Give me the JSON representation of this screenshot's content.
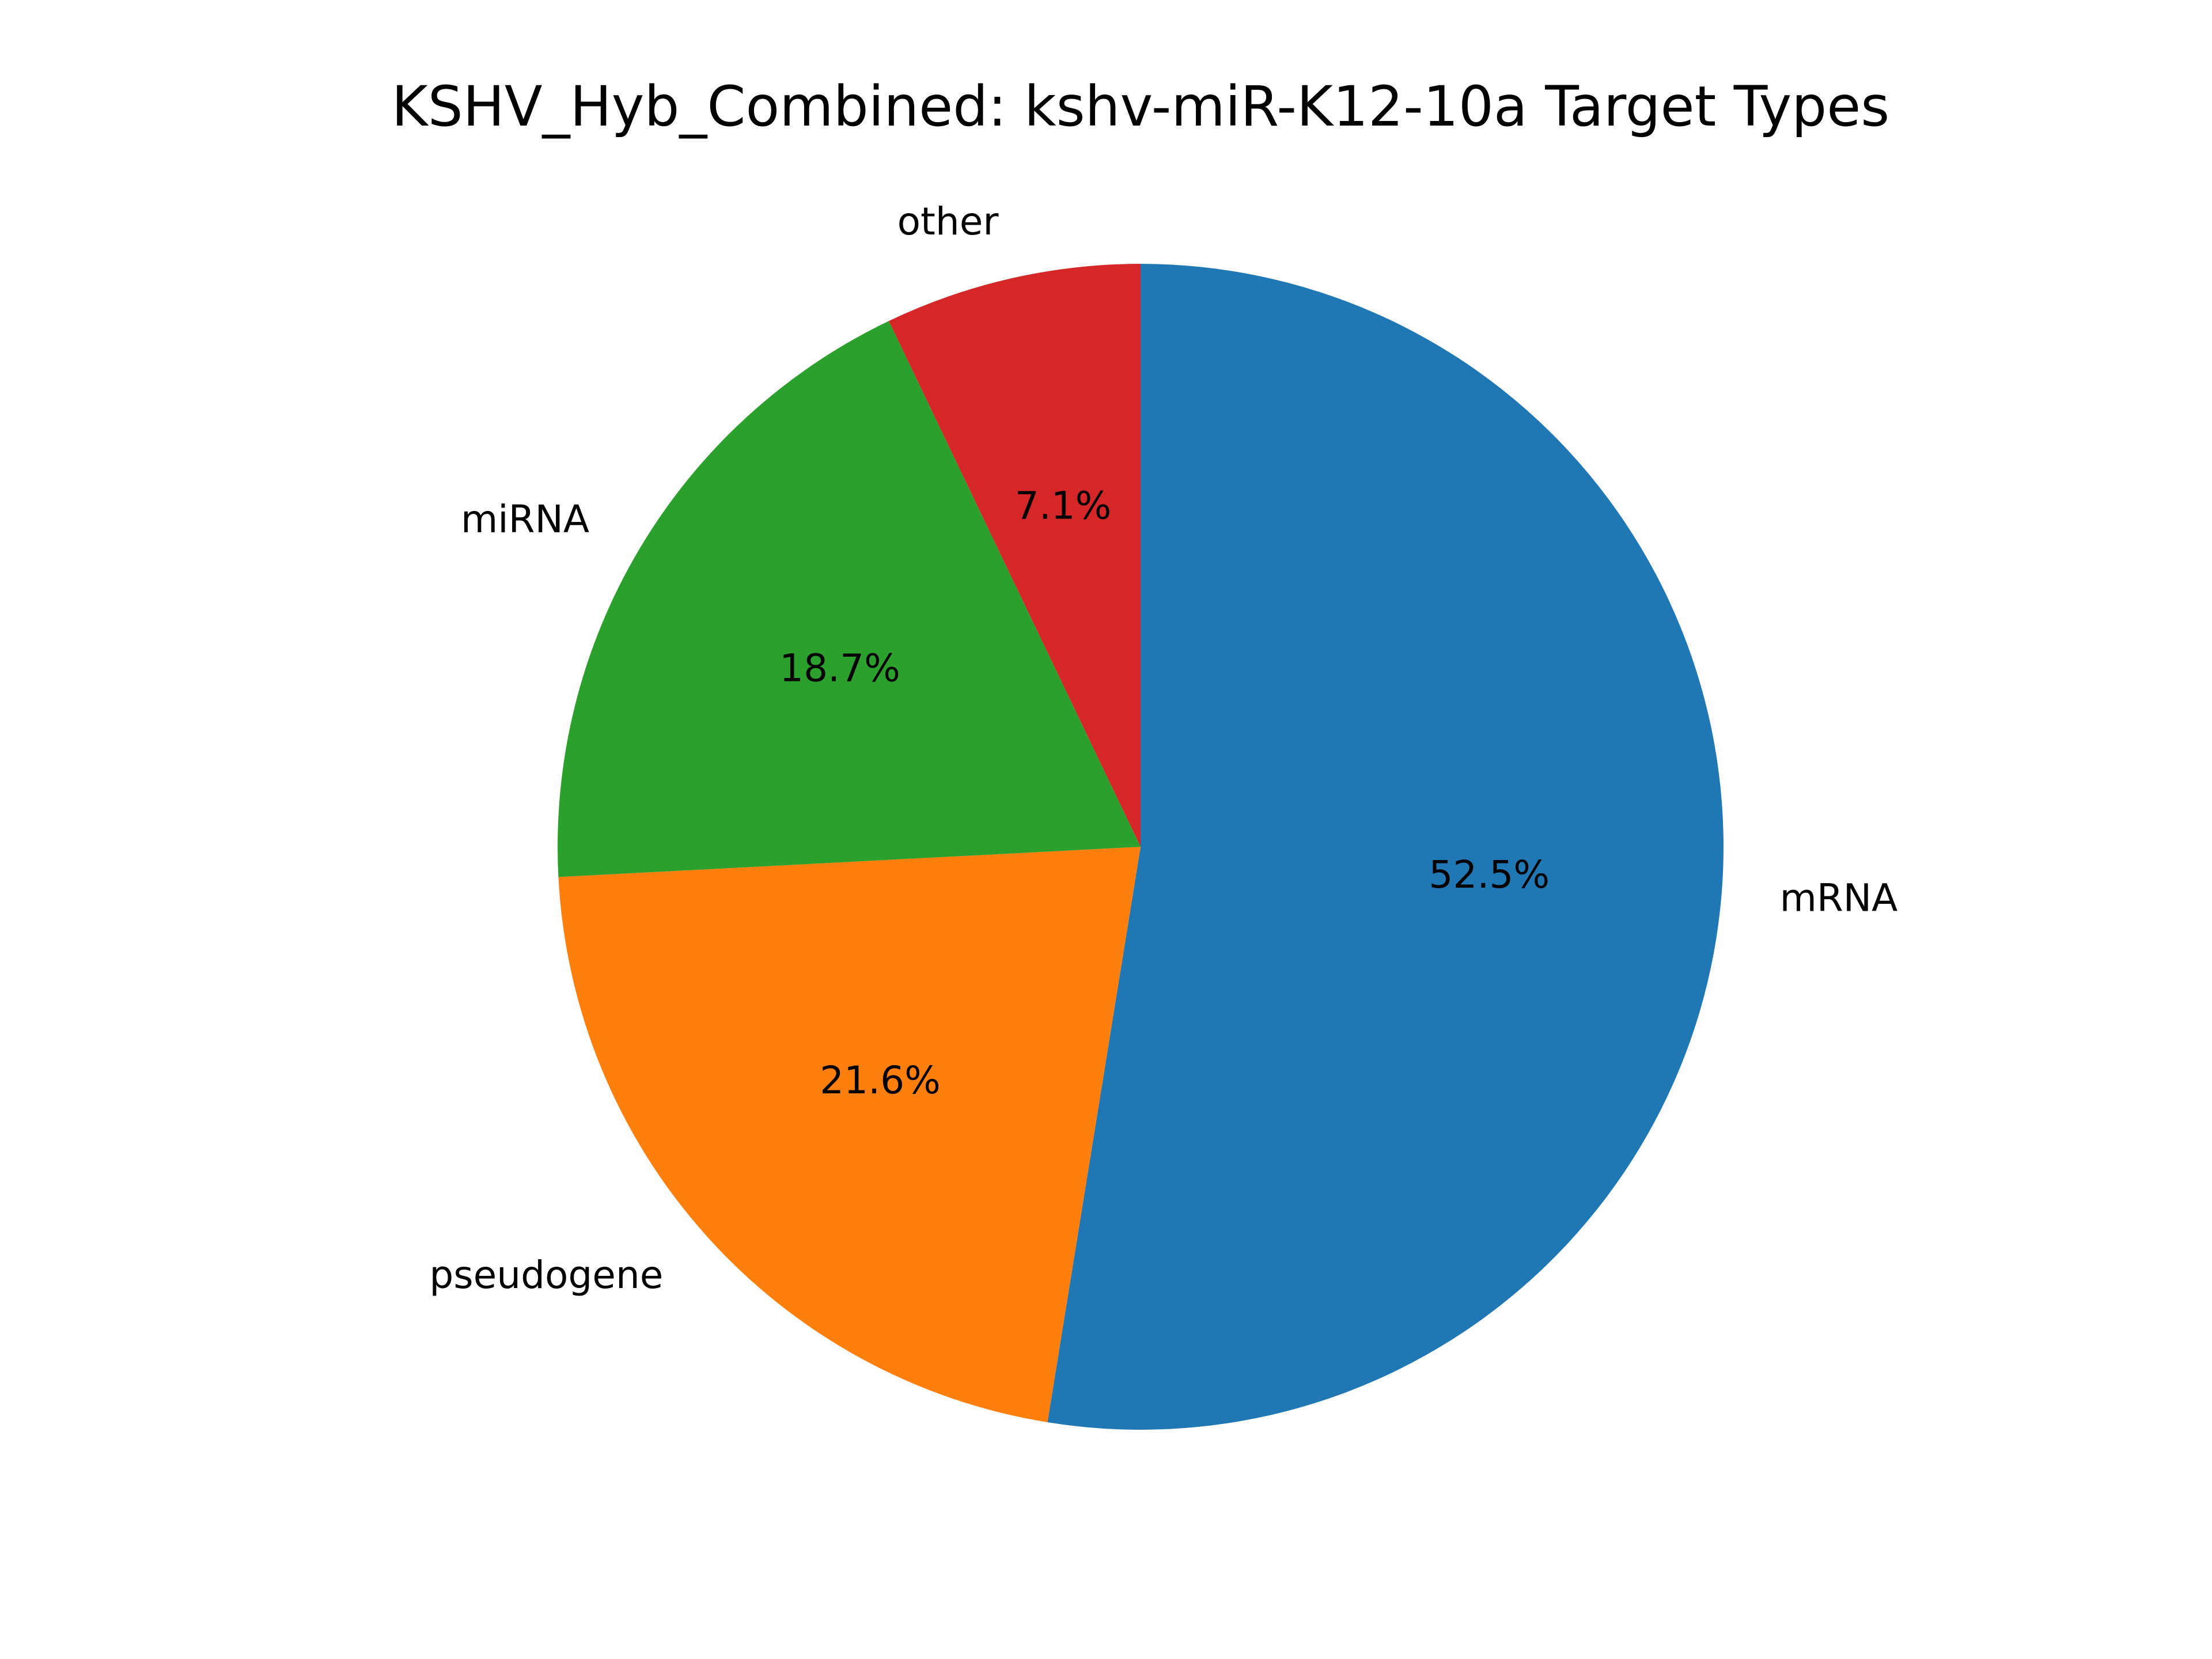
{
  "chart_data": {
    "type": "pie",
    "title": "KSHV_Hyb_Combined: kshv-miR-K12-10a Target Types",
    "start_angle": 90,
    "direction": "clockwise",
    "slices": [
      {
        "label": "mRNA",
        "value": 52.5,
        "pct_label": "52.5%",
        "color": "#1f77b4"
      },
      {
        "label": "pseudogene",
        "value": 21.6,
        "pct_label": "21.6%",
        "color": "#ff7f0e"
      },
      {
        "label": "miRNA",
        "value": 18.7,
        "pct_label": "18.7%",
        "color": "#2ca02c"
      },
      {
        "label": "other",
        "value": 7.1,
        "pct_label": "7.1%",
        "color": "#d62728"
      }
    ]
  }
}
